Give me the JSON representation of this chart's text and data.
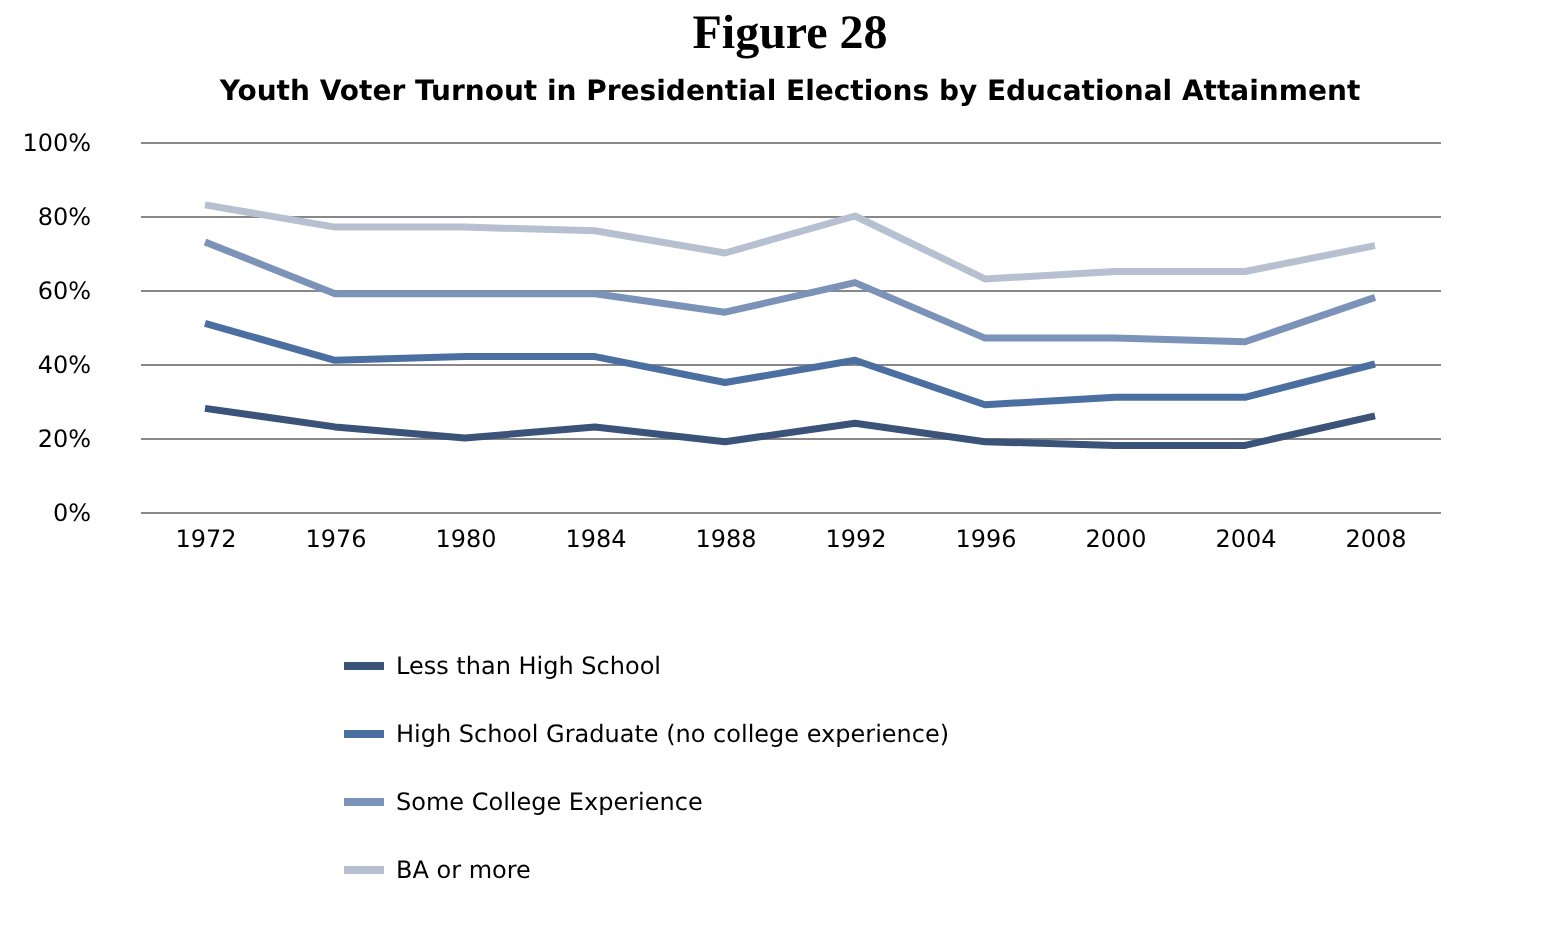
{
  "chart_data": {
    "type": "line",
    "title": "Figure 28",
    "subtitle": "Youth Voter Turnout in Presidential Elections by Educational Attainment",
    "categories": [
      "1972",
      "1976",
      "1980",
      "1984",
      "1988",
      "1992",
      "1996",
      "2000",
      "2004",
      "2008"
    ],
    "series": [
      {
        "name": "Less than High School",
        "color": "#3b5378",
        "values": [
          28,
          23,
          20,
          23,
          19,
          24,
          19,
          18,
          18,
          26
        ]
      },
      {
        "name": "High School Graduate (no college experience)",
        "color": "#4a6fa0",
        "values": [
          51,
          41,
          42,
          42,
          35,
          41,
          29,
          31,
          31,
          40
        ]
      },
      {
        "name": "Some College Experience",
        "color": "#7b93b9",
        "values": [
          73,
          59,
          59,
          59,
          54,
          62,
          47,
          47,
          46,
          58
        ]
      },
      {
        "name": "BA or more",
        "color": "#b6c0d1",
        "values": [
          83,
          77,
          77,
          76,
          70,
          80,
          63,
          65,
          65,
          72
        ]
      }
    ],
    "ylim": [
      0,
      100
    ],
    "yticks": [
      {
        "value": 0,
        "label": "0%"
      },
      {
        "value": 20,
        "label": "20%"
      },
      {
        "value": 40,
        "label": "40%"
      },
      {
        "value": 60,
        "label": "60%"
      },
      {
        "value": 80,
        "label": "80%"
      },
      {
        "value": 100,
        "label": "100%"
      }
    ],
    "grid": "y",
    "legend": "bottom",
    "marker": "none",
    "line_style": "solid"
  }
}
